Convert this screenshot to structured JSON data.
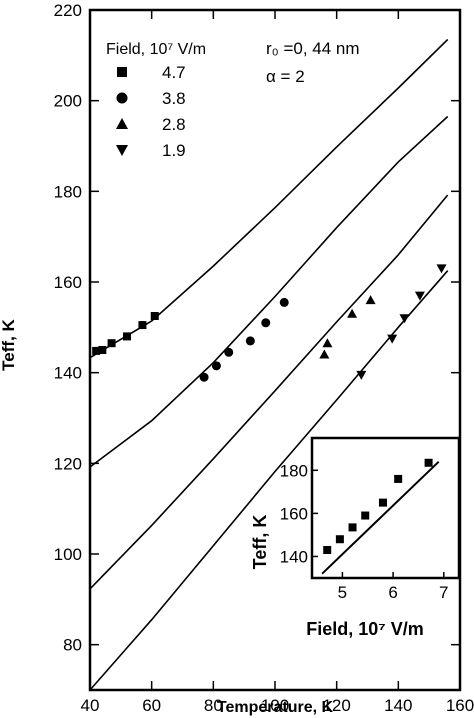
{
  "chart_data": [
    {
      "type": "scatter",
      "xlabel": "Temperature, K",
      "ylabel": "Teff, K",
      "xlim": [
        40,
        160
      ],
      "ylim": [
        70,
        220
      ],
      "x_ticks": [
        40,
        60,
        80,
        100,
        120,
        140,
        160
      ],
      "y_ticks": [
        80,
        100,
        120,
        140,
        160,
        180,
        200,
        220
      ],
      "legend": {
        "title": "Field, 10⁷ V/m",
        "placement": "top-left",
        "entries": [
          "4.7",
          "3.8",
          "2.8",
          "1.9"
        ]
      },
      "annotations": [
        "r₀ =0, 44 nm",
        "α = 2"
      ],
      "series": [
        {
          "name": "4.7",
          "marker": "square",
          "points": [
            [
              42,
              144.8
            ],
            [
              44,
              145
            ],
            [
              47,
              146.5
            ],
            [
              52,
              148
            ],
            [
              57,
              150.5
            ],
            [
              61,
              152.5
            ]
          ],
          "curve": [
            [
              40,
              143.3
            ],
            [
              60,
              151.4
            ],
            [
              80,
              163.5
            ],
            [
              100,
              176.4
            ],
            [
              120,
              189.8
            ],
            [
              140,
              202.8
            ],
            [
              156,
              213.5
            ]
          ]
        },
        {
          "name": "3.8",
          "marker": "circle",
          "points": [
            [
              77,
              139
            ],
            [
              81,
              141.5
            ],
            [
              85,
              144.5
            ],
            [
              92,
              147
            ],
            [
              97,
              151
            ],
            [
              103,
              155.5
            ]
          ],
          "curve": [
            [
              40,
              119.2
            ],
            [
              60,
              129.4
            ],
            [
              80,
              142.2
            ],
            [
              100,
              156.8
            ],
            [
              120,
              172
            ],
            [
              140,
              186.5
            ],
            [
              156,
              196.5
            ]
          ]
        },
        {
          "name": "2.8",
          "marker": "triangle-up",
          "points": [
            [
              116,
              144
            ],
            [
              117,
              146.5
            ],
            [
              125,
              153
            ],
            [
              131,
              156
            ]
          ],
          "curve": [
            [
              40,
              92.3
            ],
            [
              60,
              106.3
            ],
            [
              80,
              121
            ],
            [
              100,
              136
            ],
            [
              120,
              151.2
            ],
            [
              140,
              166
            ],
            [
              156,
              179.2
            ]
          ]
        },
        {
          "name": "1.9",
          "marker": "triangle-down",
          "points": [
            [
              128,
              139.5
            ],
            [
              138,
              147.5
            ],
            [
              142,
              152
            ],
            [
              147,
              157
            ],
            [
              154,
              163
            ]
          ],
          "curve": [
            [
              40,
              70
            ],
            [
              60,
              85.5
            ],
            [
              80,
              101.8
            ],
            [
              100,
              118.2
            ],
            [
              120,
              134
            ],
            [
              140,
              150
            ],
            [
              156,
              162.5
            ]
          ]
        }
      ]
    },
    {
      "type": "scatter",
      "placement": "inset-bottom-right",
      "xlabel": "Field, 10⁷ V/m",
      "ylabel": "Teff, K",
      "xlim": [
        4.4,
        7.3
      ],
      "ylim": [
        130,
        195
      ],
      "x_ticks": [
        5,
        6,
        7
      ],
      "y_ticks": [
        140,
        160,
        180
      ],
      "points": [
        [
          4.7,
          143
        ],
        [
          4.95,
          148
        ],
        [
          5.2,
          153.5
        ],
        [
          5.45,
          159
        ],
        [
          5.8,
          165
        ],
        [
          6.1,
          176
        ],
        [
          6.7,
          183.5
        ]
      ],
      "fit_line": [
        [
          4.6,
          132
        ],
        [
          6.9,
          184
        ]
      ]
    }
  ]
}
